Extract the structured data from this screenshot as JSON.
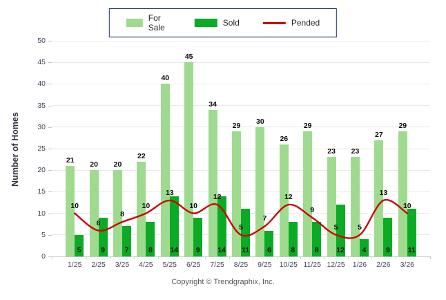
{
  "legend": {
    "for_sale_label": "For Sale",
    "sold_label": "Sold",
    "pended_label": "Pended"
  },
  "y_axis": {
    "title": "Number of Homes",
    "ticks": [
      0,
      5,
      10,
      15,
      20,
      25,
      30,
      35,
      40,
      45,
      50
    ]
  },
  "footer": {
    "copyright": "Copyright © Trendgraphix, Inc."
  },
  "colors": {
    "for_sale": "#9FDB8E",
    "sold": "#0BAB25",
    "pended": "#CB0606",
    "legend_border": "#17375E",
    "gridline": "#E9E9EC",
    "axis_line": "#C6C6C6",
    "tick_label": "#45455C",
    "value_label": "#0A0A0A",
    "copyright_text": "#595959"
  },
  "chart_data": {
    "type": "bar",
    "title": "",
    "xlabel": "",
    "ylabel": "Number of Homes",
    "ylim": [
      0,
      50
    ],
    "ytick_step": 5,
    "grid": true,
    "legend_position": "top-center",
    "categories": [
      "1/25",
      "2/25",
      "3/25",
      "4/25",
      "5/25",
      "6/25",
      "7/25",
      "8/25",
      "9/25",
      "10/25",
      "11/25",
      "12/25",
      "1/26",
      "2/26",
      "3/26"
    ],
    "series": [
      {
        "name": "For Sale",
        "type": "bar",
        "color": "#9FDB8E",
        "values": [
          21,
          20,
          20,
          22,
          40,
          45,
          34,
          29,
          30,
          26,
          29,
          23,
          23,
          27,
          29
        ]
      },
      {
        "name": "Sold",
        "type": "bar",
        "color": "#0BAB25",
        "values": [
          5,
          9,
          7,
          8,
          14,
          9,
          14,
          11,
          6,
          8,
          8,
          12,
          4,
          9,
          11
        ]
      },
      {
        "name": "Pended",
        "type": "line",
        "color": "#CB0606",
        "values": [
          10,
          6,
          8,
          10,
          13,
          10,
          12,
          5,
          7,
          12,
          9,
          5,
          5,
          13,
          10
        ]
      }
    ]
  }
}
